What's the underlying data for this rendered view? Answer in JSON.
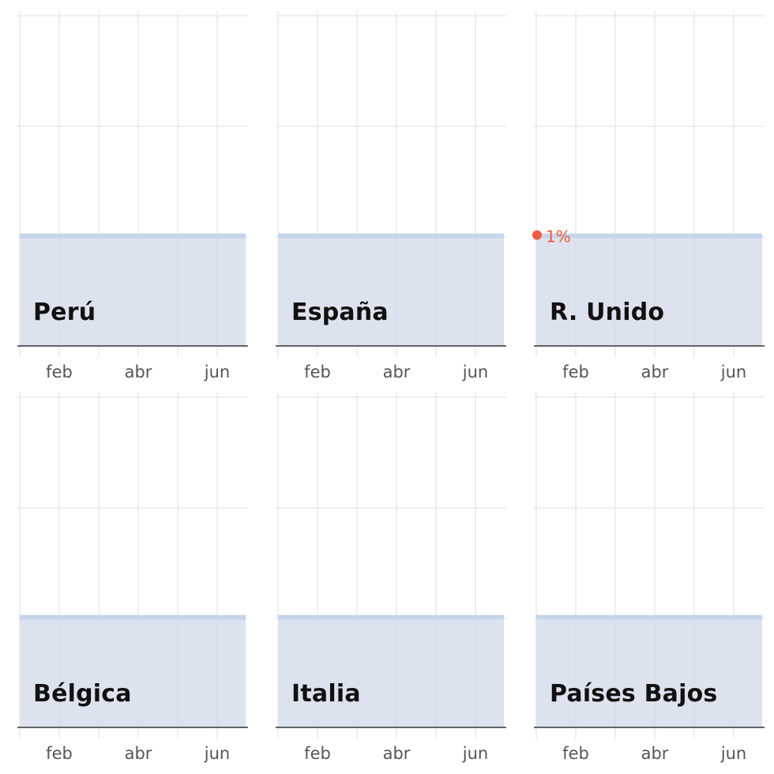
{
  "colors": {
    "grid": "#dfe4ee",
    "area": "#dde3ee",
    "line": "#c5d6ea",
    "baseline": "#333333",
    "highlight": "#ef5b3c"
  },
  "chart_data": [
    {
      "type": "area",
      "country": "Perú",
      "x_ticks": [
        "feb",
        "abr",
        "jun"
      ],
      "ylim": [
        0,
        3
      ],
      "values": [
        1,
        1,
        1,
        1,
        1,
        1
      ],
      "grid": true
    },
    {
      "type": "area",
      "country": "España",
      "x_ticks": [
        "feb",
        "abr",
        "jun"
      ],
      "ylim": [
        0,
        3
      ],
      "values": [
        1,
        1,
        1,
        1,
        1,
        1
      ],
      "grid": true
    },
    {
      "type": "area",
      "country": "R. Unido",
      "x_ticks": [
        "feb",
        "abr",
        "jun"
      ],
      "ylim": [
        0,
        3
      ],
      "values": [
        1,
        1,
        1,
        1,
        1,
        1
      ],
      "grid": true,
      "highlight": {
        "value": 1,
        "label": "1%"
      }
    },
    {
      "type": "area",
      "country": "Bélgica",
      "x_ticks": [
        "feb",
        "abr",
        "jun"
      ],
      "ylim": [
        0,
        3
      ],
      "values": [
        1,
        1,
        1,
        1,
        1,
        1
      ],
      "grid": true
    },
    {
      "type": "area",
      "country": "Italia",
      "x_ticks": [
        "feb",
        "abr",
        "jun"
      ],
      "ylim": [
        0,
        3
      ],
      "values": [
        1,
        1,
        1,
        1,
        1,
        1
      ],
      "grid": true
    },
    {
      "type": "area",
      "country": "Países Bajos",
      "x_ticks": [
        "feb",
        "abr",
        "jun"
      ],
      "ylim": [
        0,
        3
      ],
      "values": [
        1,
        1,
        1,
        1,
        1,
        1
      ],
      "grid": true
    }
  ]
}
